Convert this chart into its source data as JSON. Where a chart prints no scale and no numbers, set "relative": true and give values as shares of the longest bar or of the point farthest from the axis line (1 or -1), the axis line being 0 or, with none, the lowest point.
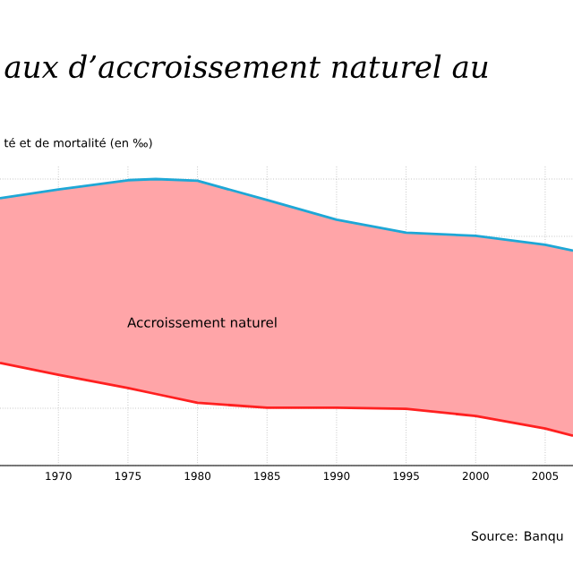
{
  "chart_data": {
    "type": "line",
    "title": "aux d’accroissement naturel au",
    "ylabel": "té et de mortalité (en ‰)",
    "relative": true,
    "grid": true,
    "xlim": [
      1965.8,
      2007
    ],
    "xticks": [
      1970,
      1975,
      1980,
      1985,
      1990,
      1995,
      2000,
      2005
    ],
    "series": [
      {
        "color": "#1ea7d6",
        "x": [
          1965.8,
          1970,
          1975,
          1977,
          1980,
          1985,
          1990,
          1995,
          2000,
          2005,
          2007
        ],
        "values": [
          0.933,
          0.964,
          0.996,
          1,
          0.994,
          0.927,
          0.858,
          0.813,
          0.802,
          0.771,
          0.75
        ],
        "upper": [
          0.933,
          0.964,
          0.996,
          1,
          0.994,
          0.927,
          0.858,
          0.813,
          0.802,
          0.771,
          0.75
        ],
        "lower": [
          0.358,
          0.317,
          0.271,
          0.25,
          0.219,
          0.202,
          0.202,
          0.198,
          0.173,
          0.129,
          0.104
        ]
      },
      {
        "color": "#ff2020",
        "x": [
          1965.8,
          1970,
          1975,
          1977,
          1980,
          1985,
          1990,
          1995,
          2000,
          2005,
          2007
        ],
        "values": [
          0.358,
          0.317,
          0.271,
          0.25,
          0.219,
          0.202,
          0.202,
          0.198,
          0.173,
          0.129,
          0.104
        ]
      }
    ],
    "annotations": [
      "Accroissement naturel",
      "Source: Banqu"
    ]
  }
}
